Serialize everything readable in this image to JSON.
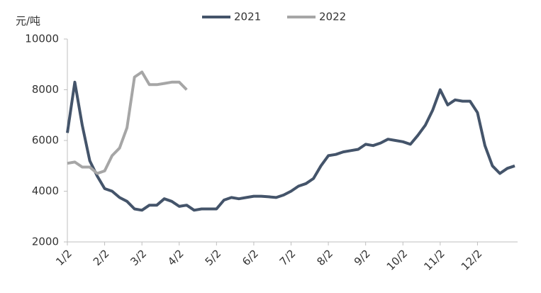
{
  "chart_data": {
    "type": "line",
    "y_label": "元/吨",
    "categories": [
      "1/2",
      null,
      null,
      null,
      null,
      "2/2",
      null,
      null,
      null,
      null,
      "3/2",
      null,
      null,
      null,
      null,
      "4/2",
      null,
      null,
      null,
      null,
      "5/2",
      null,
      null,
      null,
      null,
      "6/2",
      null,
      null,
      null,
      null,
      "7/2",
      null,
      null,
      null,
      null,
      "8/2",
      null,
      null,
      null,
      null,
      "9/2",
      null,
      null,
      null,
      null,
      "10/2",
      null,
      null,
      null,
      null,
      "11/2",
      null,
      null,
      null,
      null,
      "12/2",
      null,
      null,
      null,
      null,
      null
    ],
    "series": [
      {
        "name": "2021",
        "color": "#44546a",
        "values": [
          6300,
          8300,
          6600,
          5200,
          4600,
          4100,
          4000,
          3750,
          3600,
          3300,
          3250,
          3450,
          3450,
          3700,
          3600,
          3400,
          3450,
          3250,
          3300,
          3300,
          3300,
          3650,
          3750,
          3700,
          3750,
          3800,
          3800,
          3780,
          3750,
          3850,
          4000,
          4200,
          4300,
          4500,
          5000,
          5400,
          5450,
          5550,
          5600,
          5650,
          5850,
          5800,
          5900,
          6050,
          6000,
          5950,
          5850,
          6200,
          6600,
          7200,
          8000,
          7400,
          7600,
          7550,
          7550,
          7100,
          5800,
          5000,
          4700,
          4900,
          5000
        ]
      },
      {
        "name": "2022",
        "color": "#a6a6a6",
        "values": [
          5100,
          5150,
          4950,
          4950,
          4700,
          4800,
          5400,
          5700,
          6500,
          8500,
          8700,
          8200,
          8200,
          8250,
          8300,
          8300,
          8000,
          null,
          null,
          null,
          null,
          null,
          null,
          null,
          null,
          null,
          null,
          null,
          null,
          null,
          null,
          null,
          null,
          null,
          null,
          null,
          null,
          null,
          null,
          null,
          null,
          null,
          null,
          null,
          null,
          null,
          null,
          null,
          null,
          null,
          null,
          null,
          null,
          null,
          null,
          null,
          null,
          null,
          null,
          null,
          null
        ]
      }
    ],
    "ylim": [
      2000,
      10000
    ],
    "yticks": [
      2000,
      4000,
      6000,
      8000,
      10000
    ],
    "grid": false,
    "legend": "top"
  }
}
